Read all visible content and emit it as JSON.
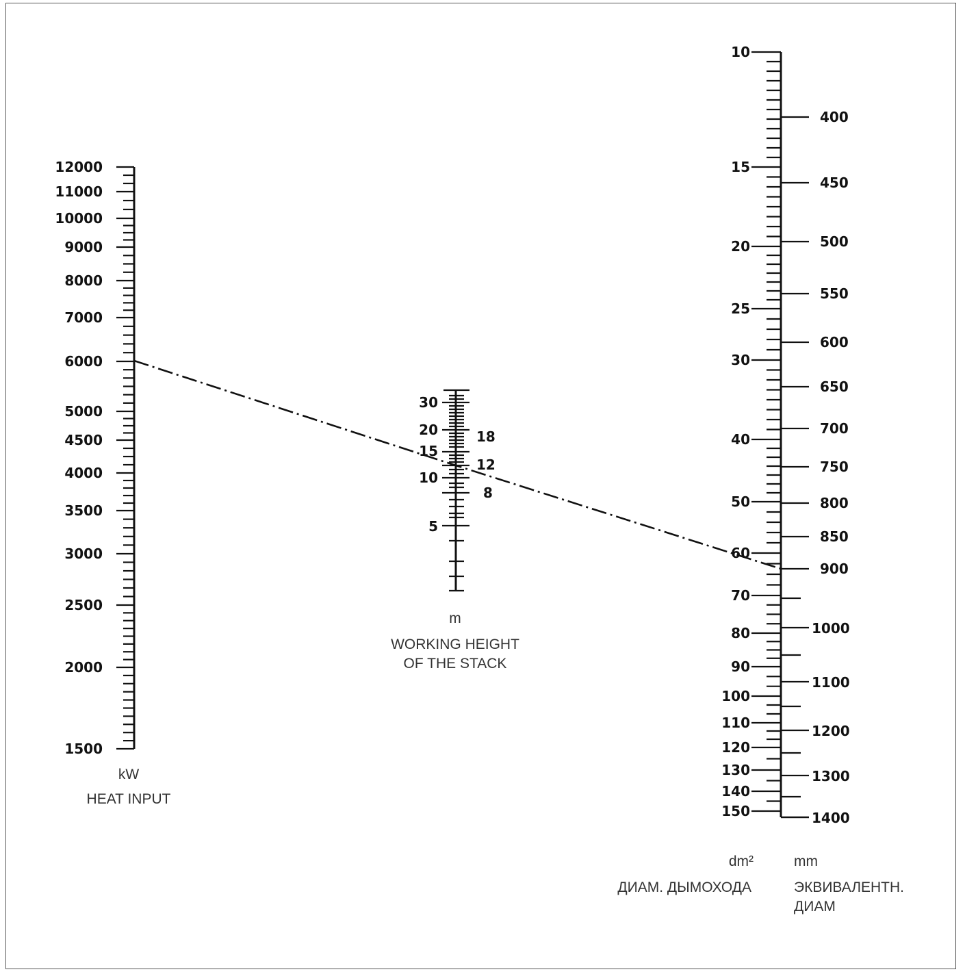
{
  "heat_input": {
    "unit": "kW",
    "caption": "HEAT INPUT",
    "labels": [
      "12000",
      "11000",
      "10000",
      "9000",
      "8000",
      "7000",
      "6000",
      "5000",
      "4500",
      "4000",
      "3500",
      "3000",
      "2500",
      "2000",
      "1500"
    ]
  },
  "stack_height": {
    "unit": "m",
    "caption_lines": [
      "WORKING HEIGHT",
      "OF THE STACK"
    ],
    "left_labels": [
      "30",
      "20",
      "15",
      "10",
      "5"
    ],
    "right_labels": [
      "18",
      "12",
      "8"
    ]
  },
  "flue_area": {
    "unit": "dm²",
    "caption": "ДИАМ. ДЫМОХОДА",
    "labels": [
      "10",
      "15",
      "20",
      "25",
      "30",
      "40",
      "50",
      "60",
      "70",
      "80",
      "90",
      "100",
      "110",
      "120",
      "130",
      "140",
      "150"
    ]
  },
  "equiv_diameter": {
    "unit": "mm",
    "caption_lines": [
      "ЭКВИВАЛЕНТН.",
      "ДИАМ"
    ],
    "labels": [
      "400",
      "450",
      "500",
      "550",
      "600",
      "650",
      "700",
      "750",
      "800",
      "850",
      "900",
      "1000",
      "1100",
      "1200",
      "1300",
      "1400"
    ]
  },
  "example": {
    "heat_input_kW": 6000,
    "stack_height_m": 12,
    "flue_area_dm2": 62,
    "equiv_diameter_mm": 900
  }
}
